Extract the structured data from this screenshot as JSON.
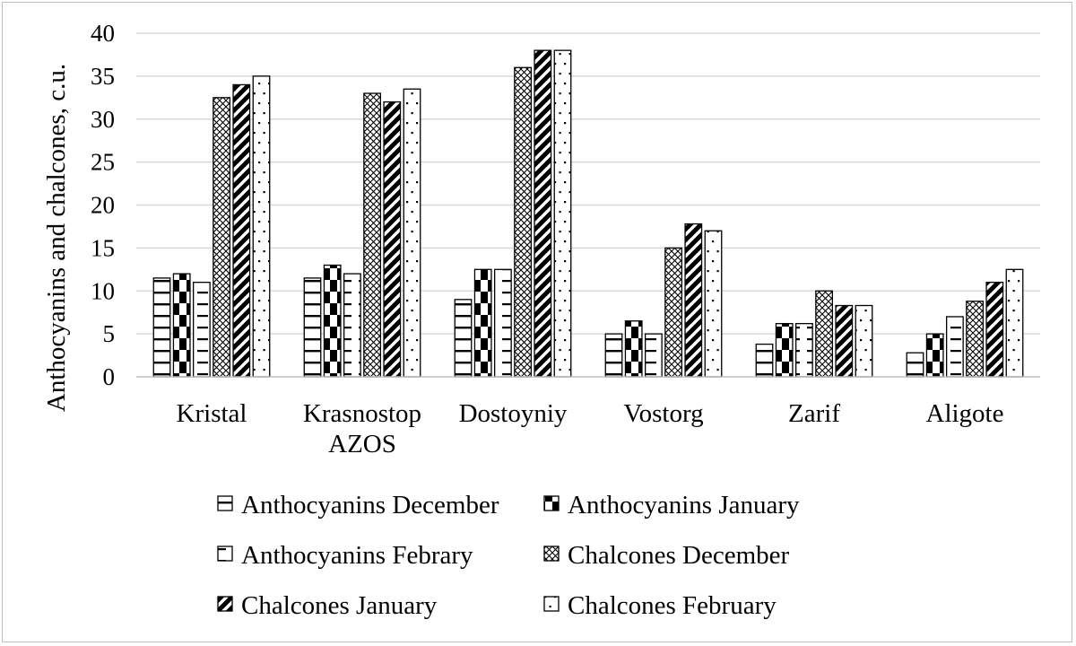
{
  "chart_data": {
    "type": "bar",
    "title": "",
    "xlabel": "",
    "ylabel": "Anthocyanins and chalcones, c.u.",
    "ylim": [
      0,
      40
    ],
    "yticks": [
      0,
      5,
      10,
      15,
      20,
      25,
      30,
      35,
      40
    ],
    "grid": true,
    "legend_position": "bottom",
    "categories": [
      [
        "Kristal"
      ],
      [
        "Krasnostop",
        "AZOS"
      ],
      [
        "Dostoyniy"
      ],
      [
        "Vostorg"
      ],
      [
        "Zarif"
      ],
      [
        "Aligote"
      ]
    ],
    "series": [
      {
        "name": "Anthocyanins December",
        "pattern": "horizontal-lines",
        "values": [
          11.5,
          11.5,
          9,
          5,
          3.8,
          2.8
        ]
      },
      {
        "name": "Anthocyanins January",
        "pattern": "checker",
        "values": [
          12,
          13,
          12.5,
          6.5,
          6.2,
          5
        ]
      },
      {
        "name": "Anthocyanins Febrary",
        "pattern": "dashed-lines",
        "values": [
          11,
          12,
          12.5,
          5,
          6.2,
          7
        ]
      },
      {
        "name": "Chalcones December",
        "pattern": "diamond-lattice",
        "values": [
          32.5,
          33,
          36,
          15,
          10,
          8.8
        ]
      },
      {
        "name": "Chalcones January",
        "pattern": "diagonal-black",
        "values": [
          34,
          32,
          38,
          17.8,
          8.3,
          11
        ]
      },
      {
        "name": "Chalcones February",
        "pattern": "sparse-dots",
        "values": [
          35,
          33.5,
          38,
          17,
          8.3,
          12.5
        ]
      }
    ]
  }
}
